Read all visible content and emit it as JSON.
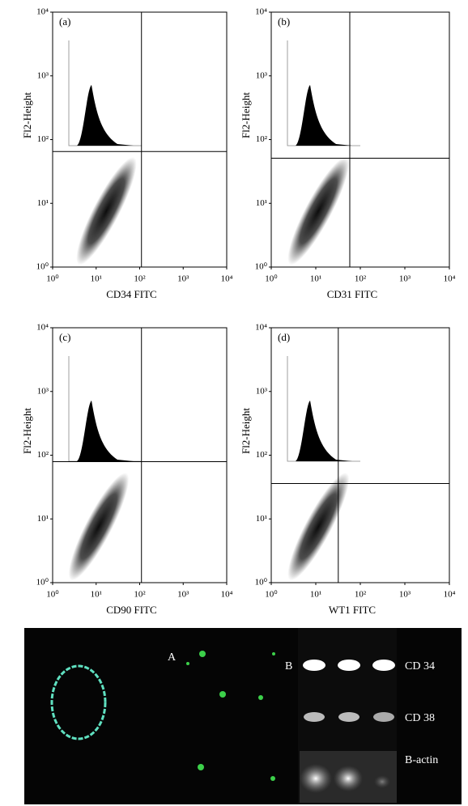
{
  "chart_data": [
    {
      "type": "scatter",
      "panel": "(a)",
      "xlabel": "CD34 FITC",
      "ylabel": "Fl2-Height",
      "log_scale": true,
      "xlim": [
        1,
        10000
      ],
      "ylim": [
        1,
        10000
      ],
      "xticks": [
        {
          "value": 1,
          "label": "10⁰"
        },
        {
          "value": 10,
          "label": "10¹"
        },
        {
          "value": 100,
          "label": "10²"
        },
        {
          "value": 1000,
          "label": "10³"
        },
        {
          "value": 10000,
          "label": "10⁴"
        }
      ],
      "yticks": [
        {
          "value": 1,
          "label": "10⁰"
        },
        {
          "value": 10,
          "label": "10¹"
        },
        {
          "value": 100,
          "label": "10²"
        },
        {
          "value": 1000,
          "label": "10³"
        },
        {
          "value": 10000,
          "label": "10⁴"
        }
      ],
      "gate": {
        "x": 110,
        "y": 65
      }
    },
    {
      "type": "scatter",
      "panel": "(b)",
      "xlabel": "CD31 FITC",
      "ylabel": "Fl2-Height",
      "log_scale": true,
      "xlim": [
        1,
        10000
      ],
      "ylim": [
        1,
        10000
      ],
      "xticks": [
        {
          "value": 1,
          "label": "10⁰"
        },
        {
          "value": 10,
          "label": "10¹"
        },
        {
          "value": 100,
          "label": "10²"
        },
        {
          "value": 1000,
          "label": "10³"
        },
        {
          "value": 10000,
          "label": "10⁴"
        }
      ],
      "yticks": [
        {
          "value": 1,
          "label": "10⁰"
        },
        {
          "value": 10,
          "label": "10¹"
        },
        {
          "value": 100,
          "label": "10²"
        },
        {
          "value": 1000,
          "label": "10³"
        },
        {
          "value": 10000,
          "label": "10⁴"
        }
      ],
      "gate": {
        "x": 58,
        "y": 51
      }
    },
    {
      "type": "scatter",
      "panel": "(c)",
      "xlabel": "CD90 FITC",
      "ylabel": "Fl2-Height",
      "log_scale": true,
      "xlim": [
        1,
        10000
      ],
      "ylim": [
        1,
        10000
      ],
      "xticks": [
        {
          "value": 1,
          "label": "10⁰"
        },
        {
          "value": 10,
          "label": "10¹"
        },
        {
          "value": 100,
          "label": "10²"
        },
        {
          "value": 1000,
          "label": "10³"
        },
        {
          "value": 10000,
          "label": "10⁴"
        }
      ],
      "yticks": [
        {
          "value": 1,
          "label": "10⁰"
        },
        {
          "value": 10,
          "label": "10¹"
        },
        {
          "value": 100,
          "label": "10²"
        },
        {
          "value": 1000,
          "label": "10³"
        },
        {
          "value": 10000,
          "label": "10⁴"
        }
      ],
      "gate": {
        "x": 110,
        "y": 79
      }
    },
    {
      "type": "scatter",
      "panel": "(d)",
      "xlabel": "WT1 FITC",
      "ylabel": "Fl2-Height",
      "log_scale": true,
      "xlim": [
        1,
        10000
      ],
      "ylim": [
        1,
        10000
      ],
      "xticks": [
        {
          "value": 1,
          "label": "10⁰"
        },
        {
          "value": 10,
          "label": "10¹"
        },
        {
          "value": 100,
          "label": "10²"
        },
        {
          "value": 1000,
          "label": "10³"
        },
        {
          "value": 10000,
          "label": "10⁴"
        }
      ],
      "yticks": [
        {
          "value": 1,
          "label": "10⁰"
        },
        {
          "value": 10,
          "label": "10¹"
        },
        {
          "value": 100,
          "label": "10²"
        },
        {
          "value": 1000,
          "label": "10³"
        },
        {
          "value": 10000,
          "label": "10⁴"
        }
      ],
      "gate": {
        "x": 32,
        "y": 36
      }
    }
  ],
  "image_panel": {
    "labels": [
      "A",
      "B"
    ],
    "bands": [
      "CD 34",
      "CD 38",
      "B-actin"
    ]
  }
}
